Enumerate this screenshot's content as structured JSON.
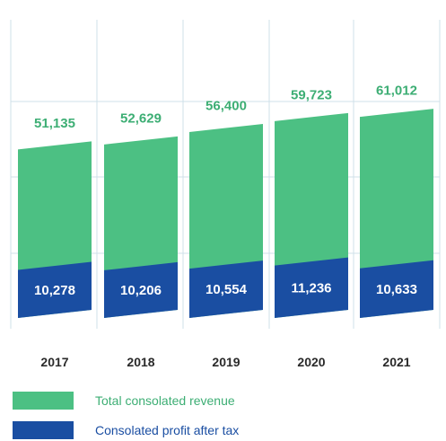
{
  "chart_data": {
    "type": "bar",
    "categories": [
      "2017",
      "2018",
      "2019",
      "2020",
      "2021"
    ],
    "series": [
      {
        "name": "Total consolated revenue",
        "values": [
          51135,
          52629,
          56400,
          59723,
          61012
        ],
        "labels": [
          "51,135",
          "52,629",
          "56,400",
          "59,723",
          "61,012"
        ],
        "color": "#4cc083",
        "label_color": "#3dae74"
      },
      {
        "name": "Consolated profit after tax",
        "values": [
          10278,
          10206,
          10554,
          11236,
          10633
        ],
        "labels": [
          "10,278",
          "10,206",
          "10,554",
          "11,236",
          "10,633"
        ],
        "color": "#1a4ea2",
        "label_color": "#ffffff"
      }
    ],
    "title": "",
    "xlabel": "",
    "ylabel": "",
    "grid": true,
    "legend": "bottom-left",
    "colors": {
      "grid": "#cfe0ea",
      "year_text": "#2a2a2a",
      "legend_text_revenue": "#3dae74",
      "legend_text_profit": "#1a4ea2"
    }
  }
}
